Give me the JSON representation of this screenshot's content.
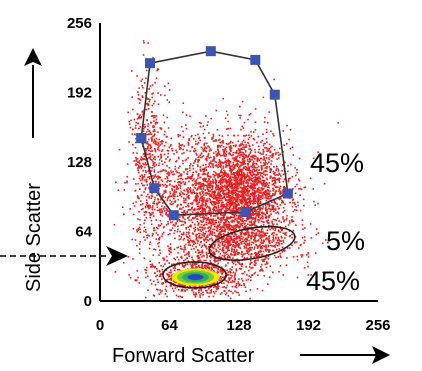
{
  "chart_data": {
    "type": "scatter",
    "title": "",
    "xlabel": "Forward Scatter",
    "ylabel": "Side Scatter",
    "xlim": [
      0,
      256
    ],
    "ylim": [
      0,
      256
    ],
    "xticks": [
      "0",
      "64",
      "128",
      "192",
      "256"
    ],
    "yticks": [
      "0",
      "64",
      "128",
      "192",
      "256"
    ],
    "grid": false,
    "point_color": "#ee1c1c",
    "gate_vertex_color": "#3a55b4",
    "gates": [
      {
        "shape": "polygon",
        "label": "45%",
        "vertices": [
          [
            38,
            150
          ],
          [
            46,
            219
          ],
          [
            102,
            230
          ],
          [
            143,
            222
          ],
          [
            161,
            190
          ],
          [
            173,
            99
          ],
          [
            134,
            82
          ],
          [
            68,
            79
          ],
          [
            50,
            104
          ],
          [
            38,
            150
          ]
        ]
      },
      {
        "shape": "ellipse",
        "label": "5%",
        "center": [
          140,
          53
        ],
        "radii": [
          40,
          14
        ],
        "angle_deg": -10
      },
      {
        "shape": "ellipse",
        "label": "45%",
        "center": [
          87,
          24
        ],
        "radii": [
          29,
          12
        ],
        "angle_deg": 0
      }
    ],
    "populations": [
      {
        "center": [
          110,
          95
        ],
        "spread": [
          30,
          32
        ],
        "count": 2400
      },
      {
        "center": [
          135,
          100
        ],
        "spread": [
          20,
          22
        ],
        "count": 1200
      },
      {
        "center": [
          45,
          130
        ],
        "spread": [
          9,
          40
        ],
        "count": 500
      },
      {
        "center": [
          130,
          52
        ],
        "spread": [
          32,
          10
        ],
        "count": 500
      },
      {
        "center": [
          90,
          22
        ],
        "spread": [
          20,
          9
        ],
        "count": 700
      }
    ],
    "dense_core": {
      "center": [
        88,
        22
      ],
      "levels": [
        "#f5e800",
        "#7acb3c",
        "#2fae5a",
        "#2846c8"
      ]
    },
    "threshold_marker": {
      "y": 40
    }
  }
}
